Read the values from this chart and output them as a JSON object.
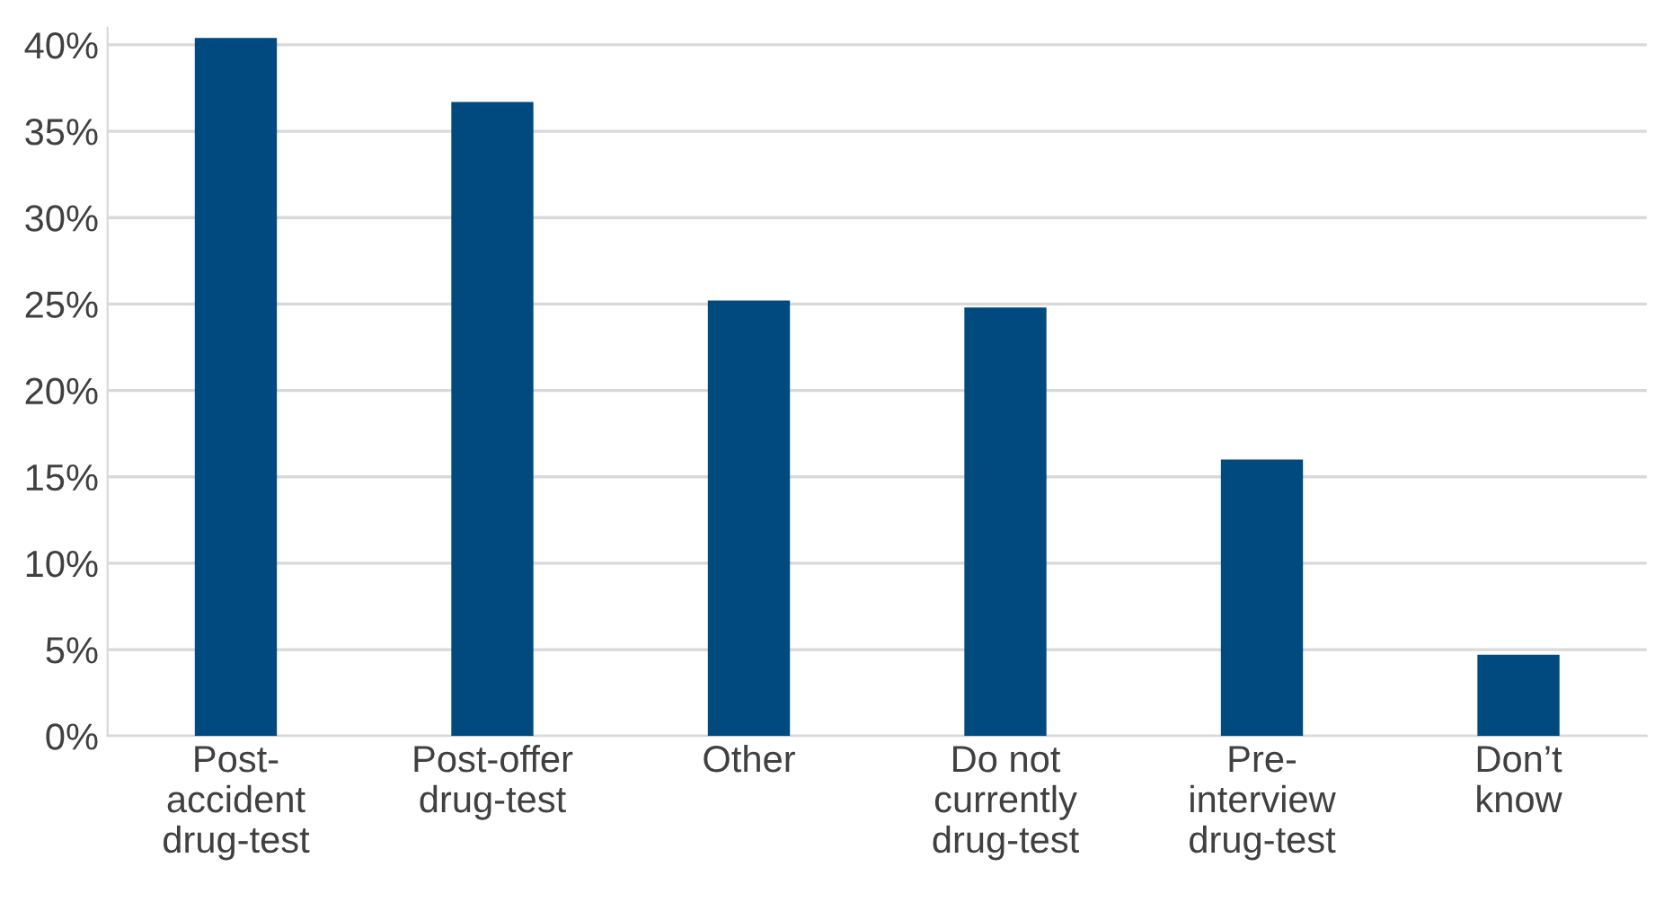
{
  "chart_data": {
    "type": "bar",
    "categories": [
      "Post-\naccident\ndrug-test",
      "Post-offer\ndrug-test",
      "Other",
      "Do not\ncurrently\ndrug-test",
      "Pre-\ninterview\ndrug-test",
      "Don’t\nknow"
    ],
    "values": [
      40.4,
      36.7,
      25.2,
      24.8,
      16.0,
      4.7
    ],
    "color": "#004a80",
    "ylim": [
      0,
      41
    ],
    "yticks": [
      {
        "value": 0,
        "label": "0%"
      },
      {
        "value": 5,
        "label": "5%"
      },
      {
        "value": 10,
        "label": "10%"
      },
      {
        "value": 15,
        "label": "15%"
      },
      {
        "value": 20,
        "label": "20%"
      },
      {
        "value": 25,
        "label": "25%"
      },
      {
        "value": 30,
        "label": "30%"
      },
      {
        "value": 35,
        "label": "35%"
      },
      {
        "value": 40,
        "label": "40%"
      }
    ],
    "grid": "y"
  }
}
